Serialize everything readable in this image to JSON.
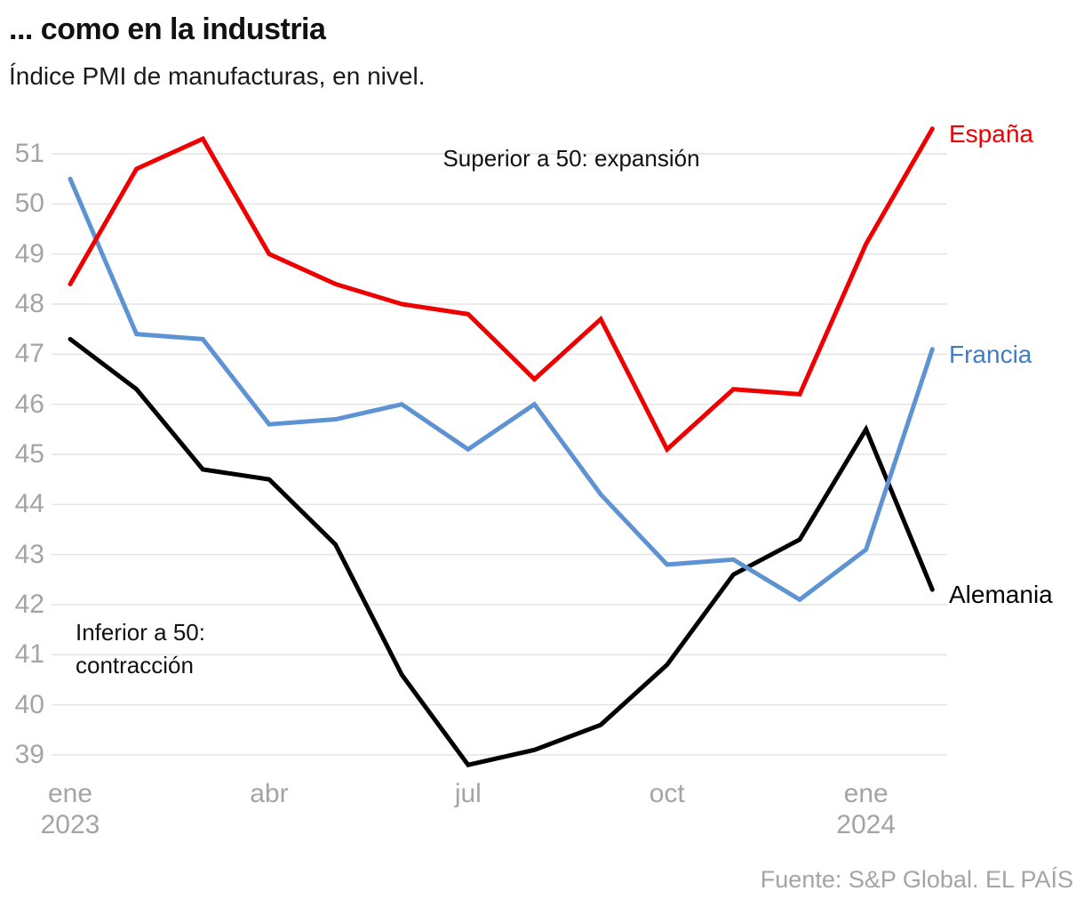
{
  "header": {
    "title": "... como en la industria",
    "subtitle": "Índice PMI de manufacturas, en nivel."
  },
  "chart_data": {
    "type": "line",
    "title": "... como en la industria",
    "subtitle": "Índice PMI de manufacturas, en nivel.",
    "x": [
      "ene 2023",
      "feb 2023",
      "mar 2023",
      "abr 2023",
      "may 2023",
      "jun 2023",
      "jul 2023",
      "ago 2023",
      "sep 2023",
      "oct 2023",
      "nov 2023",
      "dic 2023",
      "ene 2024",
      "feb 2024"
    ],
    "x_ticks": [
      {
        "label": "ene",
        "sublabel": "2023",
        "index": 0
      },
      {
        "label": "abr",
        "sublabel": "",
        "index": 3
      },
      {
        "label": "jul",
        "sublabel": "",
        "index": 6
      },
      {
        "label": "oct",
        "sublabel": "",
        "index": 9
      },
      {
        "label": "ene",
        "sublabel": "2024",
        "index": 12
      }
    ],
    "y_ticks": [
      39,
      40,
      41,
      42,
      43,
      44,
      45,
      46,
      47,
      48,
      49,
      50,
      51
    ],
    "ylim": [
      38.6,
      51.7
    ],
    "grid": "horizontal",
    "legend_position": "line-end-labels-right",
    "series": [
      {
        "name": "España",
        "slug": "espana",
        "color": "#ee0000",
        "label_color": "#ee0000",
        "values": [
          48.4,
          50.7,
          51.3,
          49.0,
          48.4,
          48.0,
          47.8,
          46.5,
          47.7,
          45.1,
          46.3,
          46.2,
          49.2,
          51.5
        ]
      },
      {
        "name": "Francia",
        "slug": "francia",
        "color": "#5d93d2",
        "label_color": "#3f7dc2",
        "values": [
          50.5,
          47.4,
          47.3,
          45.6,
          45.7,
          46.0,
          45.1,
          46.0,
          44.2,
          42.8,
          42.9,
          42.1,
          43.1,
          47.1
        ]
      },
      {
        "name": "Alemania",
        "slug": "alemania",
        "color": "#000000",
        "label_color": "#000000",
        "values": [
          47.3,
          46.3,
          44.7,
          44.5,
          43.2,
          40.6,
          38.8,
          39.1,
          39.6,
          40.8,
          42.6,
          43.3,
          45.5,
          42.3
        ]
      }
    ],
    "annotations": {
      "superior": "Superior a 50: expansión",
      "inferior": "Inferior a 50:\ncontracción"
    }
  },
  "footer": {
    "source": "Fuente: S&P Global. EL PAÍS"
  },
  "colors": {
    "spain_red": "#ee0000",
    "france_blue": "#5d93d2",
    "france_label_blue": "#3f7dc2",
    "germany_black": "#000000",
    "axis_gray": "#a4a4a4",
    "grid_gray": "#e4e4e4",
    "text_dark": "#111111"
  }
}
